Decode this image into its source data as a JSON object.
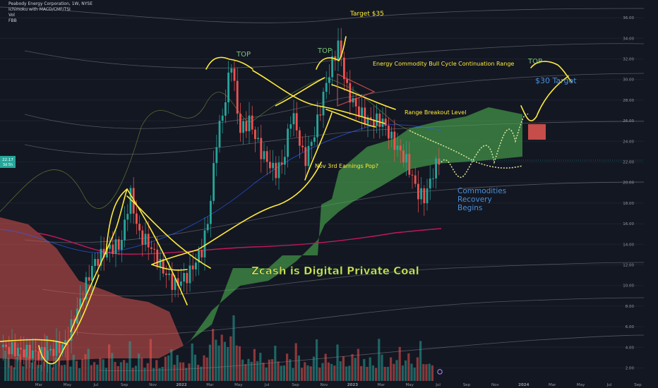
{
  "header": {
    "title": "Peabody Energy Corporation, 1W, NYSE",
    "indicators": [
      "Ichimoku with MACD/CMF/TSI",
      "Vol",
      "FBB"
    ]
  },
  "price_tags": {
    "last": "22.17",
    "countdown": "3d 5h"
  },
  "colors": {
    "background": "#131722",
    "bull_candle": "#26a69a",
    "bear_candle": "#ef5350",
    "cloud_bull": "#4caf50",
    "cloud_bear": "#d9534f",
    "annotation_yellow": "#ffeb3b",
    "annotation_green": "#7cc47a",
    "annotation_blue": "#4a90d9",
    "ma_purple": "#c2185b",
    "bands_gray": "#8a8d96"
  },
  "chart_data": {
    "type": "candlestick",
    "symbol": "Peabody Energy Corporation, 1W, NYSE",
    "y_axis": {
      "ticks": [
        2,
        4,
        6,
        8,
        10,
        12,
        14,
        16,
        18,
        20,
        22,
        24,
        26,
        28,
        30,
        32,
        34,
        36
      ],
      "tick_labels": [
        "2.00",
        "4.00",
        "6.00",
        "8.00",
        "10.00",
        "12.00",
        "14.00",
        "16.00",
        "18.00",
        "20.00",
        "22.00",
        "24.00",
        "26.00",
        "28.00",
        "30.00",
        "32.00",
        "34.00",
        "36.00"
      ],
      "range": [
        1,
        37
      ]
    },
    "x_axis": {
      "tick_labels": [
        "Mar",
        "May",
        "Jul",
        "Sep",
        "Nov",
        "2022",
        "Mar",
        "May",
        "Jul",
        "Sep",
        "Nov",
        "2023",
        "Mar",
        "May",
        "Jul",
        "Sep",
        "Nov",
        "2024",
        "Mar",
        "May",
        "Jul",
        "Sep"
      ]
    },
    "key_prices": [
      {
        "date": "2021-01",
        "close": 3.6
      },
      {
        "date": "2021-06",
        "close": 13.5
      },
      {
        "date": "2021-07",
        "close": 19.1
      },
      {
        "date": "2021-10",
        "close": 10.2
      },
      {
        "date": "2022-02",
        "close": 15.5
      },
      {
        "date": "2022-04",
        "close": 32.9
      },
      {
        "date": "2022-07",
        "close": 20.5
      },
      {
        "date": "2022-11",
        "close": 33.5
      },
      {
        "date": "2023-01",
        "close": 24.5
      },
      {
        "date": "2023-05",
        "close": 18.0
      },
      {
        "date": "2023-07",
        "close": 22.17
      }
    ],
    "annotations": [
      {
        "text": "Target $35",
        "color": "yellow"
      },
      {
        "text": "TOP",
        "color": "green"
      },
      {
        "text": "TOP",
        "color": "green"
      },
      {
        "text": "Energy Commodity Bull Cycle Continuation Range",
        "color": "yellow"
      },
      {
        "text": "TOP",
        "color": "green"
      },
      {
        "text": "$30 Target",
        "color": "blue"
      },
      {
        "text": "Range Breakout Level",
        "color": "yellow"
      },
      {
        "text": "Nov 3rd Earnings Pop?",
        "color": "yellow"
      },
      {
        "text": "Commodities",
        "color": "blue"
      },
      {
        "text": "Recovery",
        "color": "blue"
      },
      {
        "text": "Begins",
        "color": "blue"
      },
      {
        "text": "Zcash is Digital Private Coal",
        "color": "yellow"
      }
    ]
  }
}
